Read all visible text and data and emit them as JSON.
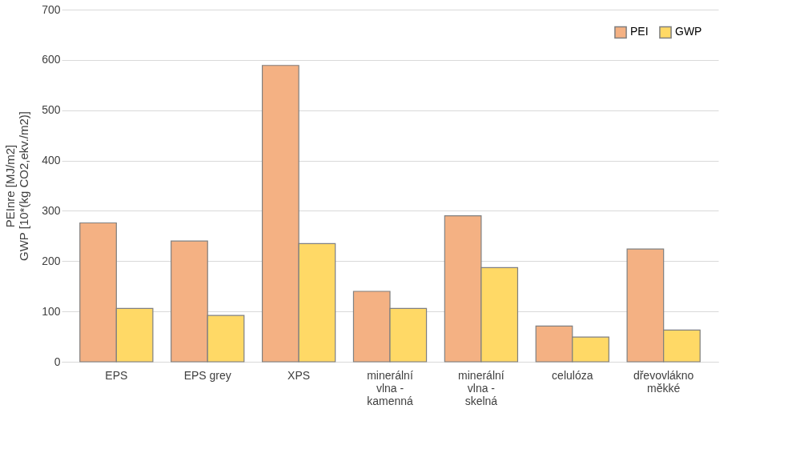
{
  "chart_data": {
    "type": "bar",
    "ylabel": "PEInre [MJ/m2]\nGWP [10*(kg CO2,ekv./m2)]",
    "categories": [
      "EPS",
      "EPS grey",
      "XPS",
      "minerální vlna - kamenná",
      "minerální vlna - skelná",
      "celulóza",
      "dřevovlákno měkké"
    ],
    "series": [
      {
        "name": "PEI",
        "color": "#f4b183",
        "values": [
          276,
          240,
          589,
          140,
          290,
          71,
          224
        ]
      },
      {
        "name": "GWP",
        "color": "#ffd966",
        "values": [
          106,
          92,
          235,
          106,
          187,
          49,
          63
        ]
      }
    ],
    "ylim": [
      0,
      700
    ],
    "yticks": [
      0,
      100,
      200,
      300,
      400,
      500,
      600,
      700
    ],
    "grid": "y",
    "legend": "top right"
  }
}
